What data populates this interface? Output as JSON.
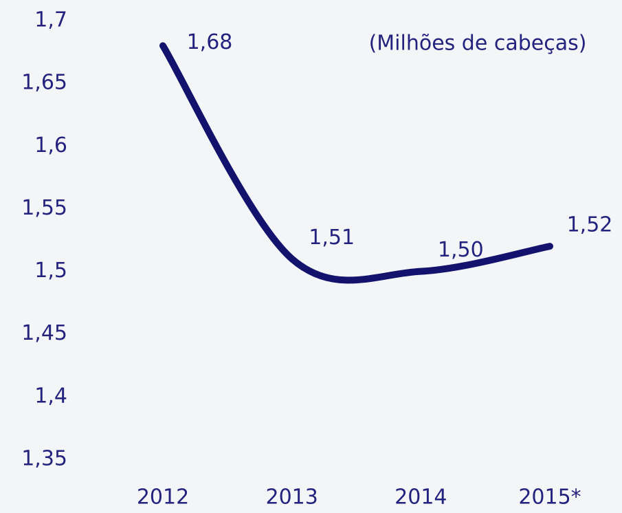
{
  "chart_data": {
    "type": "line",
    "subtitle": "(Milhões de cabeças)",
    "categories": [
      "2012",
      "2013",
      "2014",
      "2015*"
    ],
    "series": [
      {
        "name": null,
        "color": "#13136e",
        "values": [
          1.68,
          1.51,
          1.5,
          1.52
        ],
        "value_labels": [
          "1,68",
          "1,51",
          "1,50",
          "1,52"
        ]
      }
    ],
    "ylim": [
      1.35,
      1.7
    ],
    "yticks": [
      {
        "value": 1.35,
        "label": "1,35"
      },
      {
        "value": 1.4,
        "label": "1,4"
      },
      {
        "value": 1.45,
        "label": "1,45"
      },
      {
        "value": 1.5,
        "label": "1,5"
      },
      {
        "value": 1.55,
        "label": "1,55"
      },
      {
        "value": 1.6,
        "label": "1,6"
      },
      {
        "value": 1.65,
        "label": "1,65"
      },
      {
        "value": 1.7,
        "label": "1,7"
      }
    ],
    "grid": false
  }
}
